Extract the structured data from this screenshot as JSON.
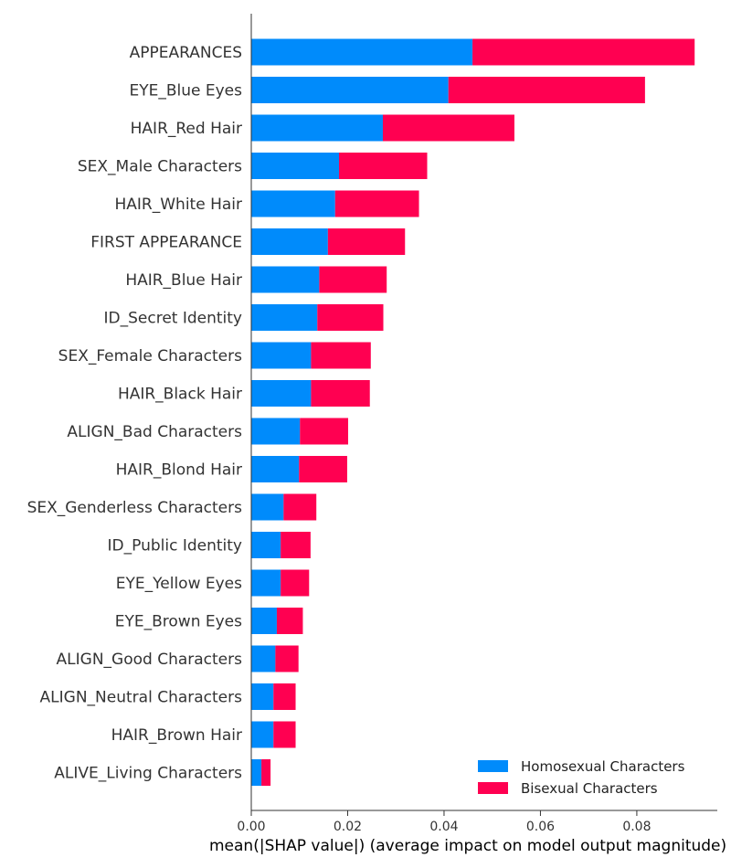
{
  "chart_data": {
    "type": "bar",
    "orientation": "horizontal",
    "stacked": true,
    "categories": [
      "APPEARANCES",
      "EYE_Blue Eyes",
      "HAIR_Red Hair",
      "SEX_Male Characters",
      "HAIR_White Hair",
      "FIRST APPEARANCE",
      "HAIR_Blue Hair",
      "ID_Secret Identity",
      "SEX_Female Characters",
      "HAIR_Black Hair",
      "ALIGN_Bad Characters",
      "HAIR_Blond Hair",
      "SEX_Genderless Characters",
      "ID_Public Identity",
      "EYE_Yellow Eyes",
      "EYE_Brown Eyes",
      "ALIGN_Good Characters",
      "ALIGN_Neutral Characters",
      "HAIR_Brown Hair",
      "ALIVE_Living Characters"
    ],
    "series": [
      {
        "name": "Homosexual Characters",
        "color": "#008BFB",
        "values": [
          0.0459,
          0.0409,
          0.0273,
          0.0182,
          0.0174,
          0.0159,
          0.0141,
          0.0137,
          0.0124,
          0.0124,
          0.0101,
          0.0099,
          0.0067,
          0.0061,
          0.0061,
          0.0053,
          0.005,
          0.0046,
          0.0046,
          0.0021
        ]
      },
      {
        "name": "Bisexual Characters",
        "color": "#FF0051",
        "values": [
          0.0461,
          0.0408,
          0.0273,
          0.0183,
          0.0174,
          0.016,
          0.014,
          0.0137,
          0.0124,
          0.0122,
          0.01,
          0.01,
          0.0068,
          0.0062,
          0.0059,
          0.0054,
          0.0048,
          0.0046,
          0.0046,
          0.0019
        ]
      }
    ],
    "xlabel": "mean(|SHAP value|) (average impact on model output magnitude)",
    "xlim": [
      0,
      0.0967
    ],
    "xticks": [
      0.0,
      0.02,
      0.04,
      0.06,
      0.08
    ],
    "xtick_labels": [
      "0.00",
      "0.02",
      "0.04",
      "0.06",
      "0.08"
    ],
    "grid": false,
    "legend": "bottom-right"
  }
}
